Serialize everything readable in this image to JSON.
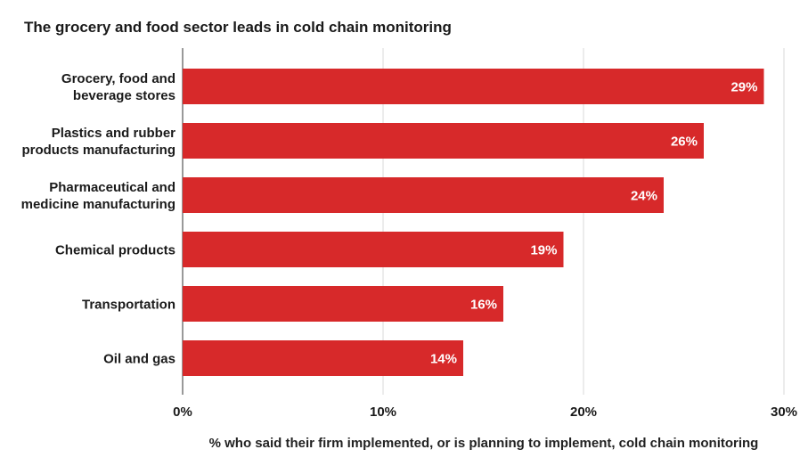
{
  "chart_data": {
    "type": "bar",
    "orientation": "horizontal",
    "title": "The grocery and food sector leads in cold chain monitoring",
    "xlabel": "% who said their firm implemented, or is planning to implement, cold chain monitoring",
    "ylabel": "",
    "categories": [
      [
        "Grocery, food and",
        "beverage stores"
      ],
      [
        "Plastics and rubber",
        "products manufacturing"
      ],
      [
        "Pharmaceutical and",
        "medicine manufacturing"
      ],
      [
        "Chemical products"
      ],
      [
        "Transportation"
      ],
      [
        "Oil and gas"
      ]
    ],
    "values": [
      29,
      26,
      24,
      19,
      16,
      14
    ],
    "data_labels": [
      "29%",
      "26%",
      "24%",
      "19%",
      "16%",
      "14%"
    ],
    "xlim": [
      0,
      30
    ],
    "x_ticks": [
      0,
      10,
      20,
      30
    ],
    "x_tick_labels": [
      "0%",
      "10%",
      "20%",
      "30%"
    ],
    "grid": true,
    "colors": {
      "bar": "#d7292a",
      "grid": "#d9d9d9",
      "axis": "#333333",
      "text": "#1a1a1a",
      "bar_label": "#ffffff"
    }
  }
}
